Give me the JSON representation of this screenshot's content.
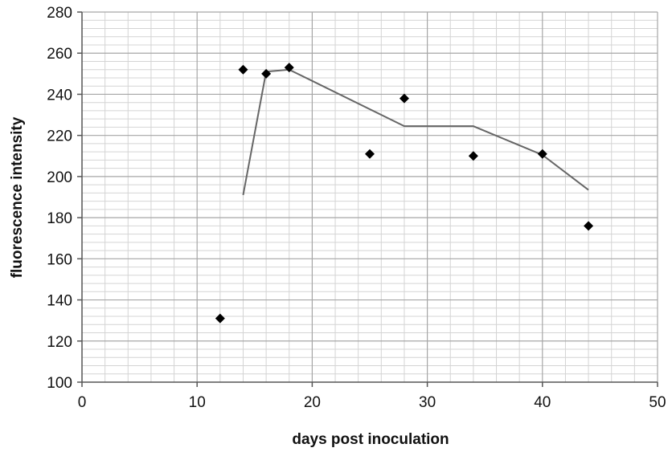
{
  "chart_data": {
    "type": "scatter",
    "xlabel": "days post inoculation",
    "ylabel": "fluorescence intensity",
    "xlim": [
      0,
      50
    ],
    "ylim": [
      100,
      280
    ],
    "x_ticks": [
      0,
      10,
      20,
      30,
      40,
      50
    ],
    "y_ticks": [
      100,
      120,
      140,
      160,
      180,
      200,
      220,
      240,
      260,
      280
    ],
    "x_minor_step": 2,
    "y_minor_step": 4,
    "grid": true,
    "legend": "none",
    "series": [
      {
        "type": "scatter",
        "marker": "diamond",
        "x": [
          12,
          14,
          16,
          18,
          25,
          28,
          34,
          40,
          44
        ],
        "y": [
          131,
          252,
          250,
          253,
          211,
          238,
          210,
          211,
          176
        ]
      },
      {
        "type": "line",
        "x": [
          14,
          16,
          18,
          28,
          34,
          40,
          44
        ],
        "y": [
          191,
          251,
          252,
          224.5,
          224.5,
          210.5,
          193.5
        ]
      }
    ],
    "colors": {
      "marker": "#000000",
      "line": "#666666",
      "major_grid": "#a6a6a6",
      "minor_grid": "#d4d4d4",
      "axis": "#555555"
    }
  }
}
